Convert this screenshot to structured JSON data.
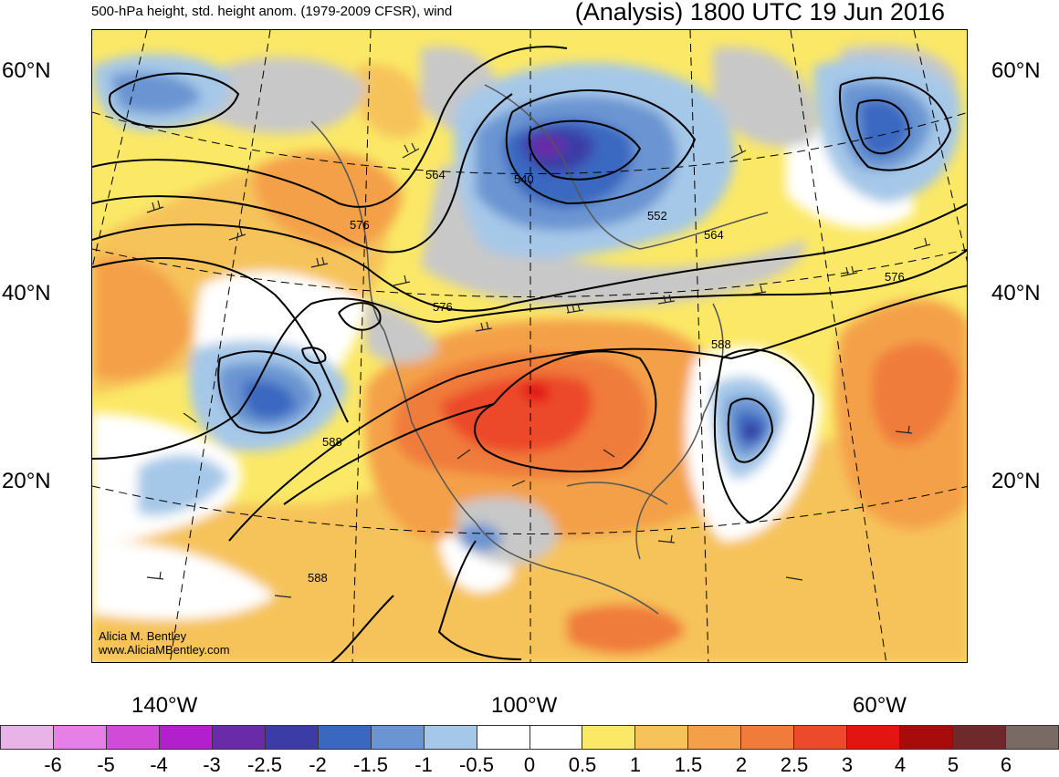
{
  "header": {
    "title_left": "500-hPa height, std. height anom. (1979-2009 CFSR), wind",
    "title_right": "(Analysis) 1800 UTC 19 Jun 2016"
  },
  "axes": {
    "lat_labels": [
      "60°N",
      "40°N",
      "20°N"
    ],
    "lon_labels": [
      "140°W",
      "100°W",
      "60°W"
    ]
  },
  "contour_labels": [
    "564",
    "540",
    "552",
    "564",
    "576",
    "576",
    "576",
    "588",
    "588",
    "588"
  ],
  "credit": {
    "line1": "Alicia M. Bentley",
    "line2": "www.AliciaMBentley.com"
  },
  "colorbar": {
    "colors": [
      "#e8b4e8",
      "#e67fe6",
      "#d24ad8",
      "#b21fcc",
      "#6a2ba8",
      "#3b3ca6",
      "#3a67c0",
      "#6a95d2",
      "#a6c8e8",
      "#ffffff",
      "#ffffff",
      "#fbe866",
      "#f6c35a",
      "#f4a04a",
      "#f07b3a",
      "#ec4a2a",
      "#e21512",
      "#a80b0b",
      "#6e2a2a",
      "#7a6a64"
    ],
    "labels": [
      "-6",
      "-5",
      "-4",
      "-3",
      "-2.5",
      "-2",
      "-1.5",
      "-1",
      "-0.5",
      "0",
      "0.5",
      "1",
      "1.5",
      "2",
      "2.5",
      "3",
      "4",
      "5",
      "6"
    ]
  }
}
